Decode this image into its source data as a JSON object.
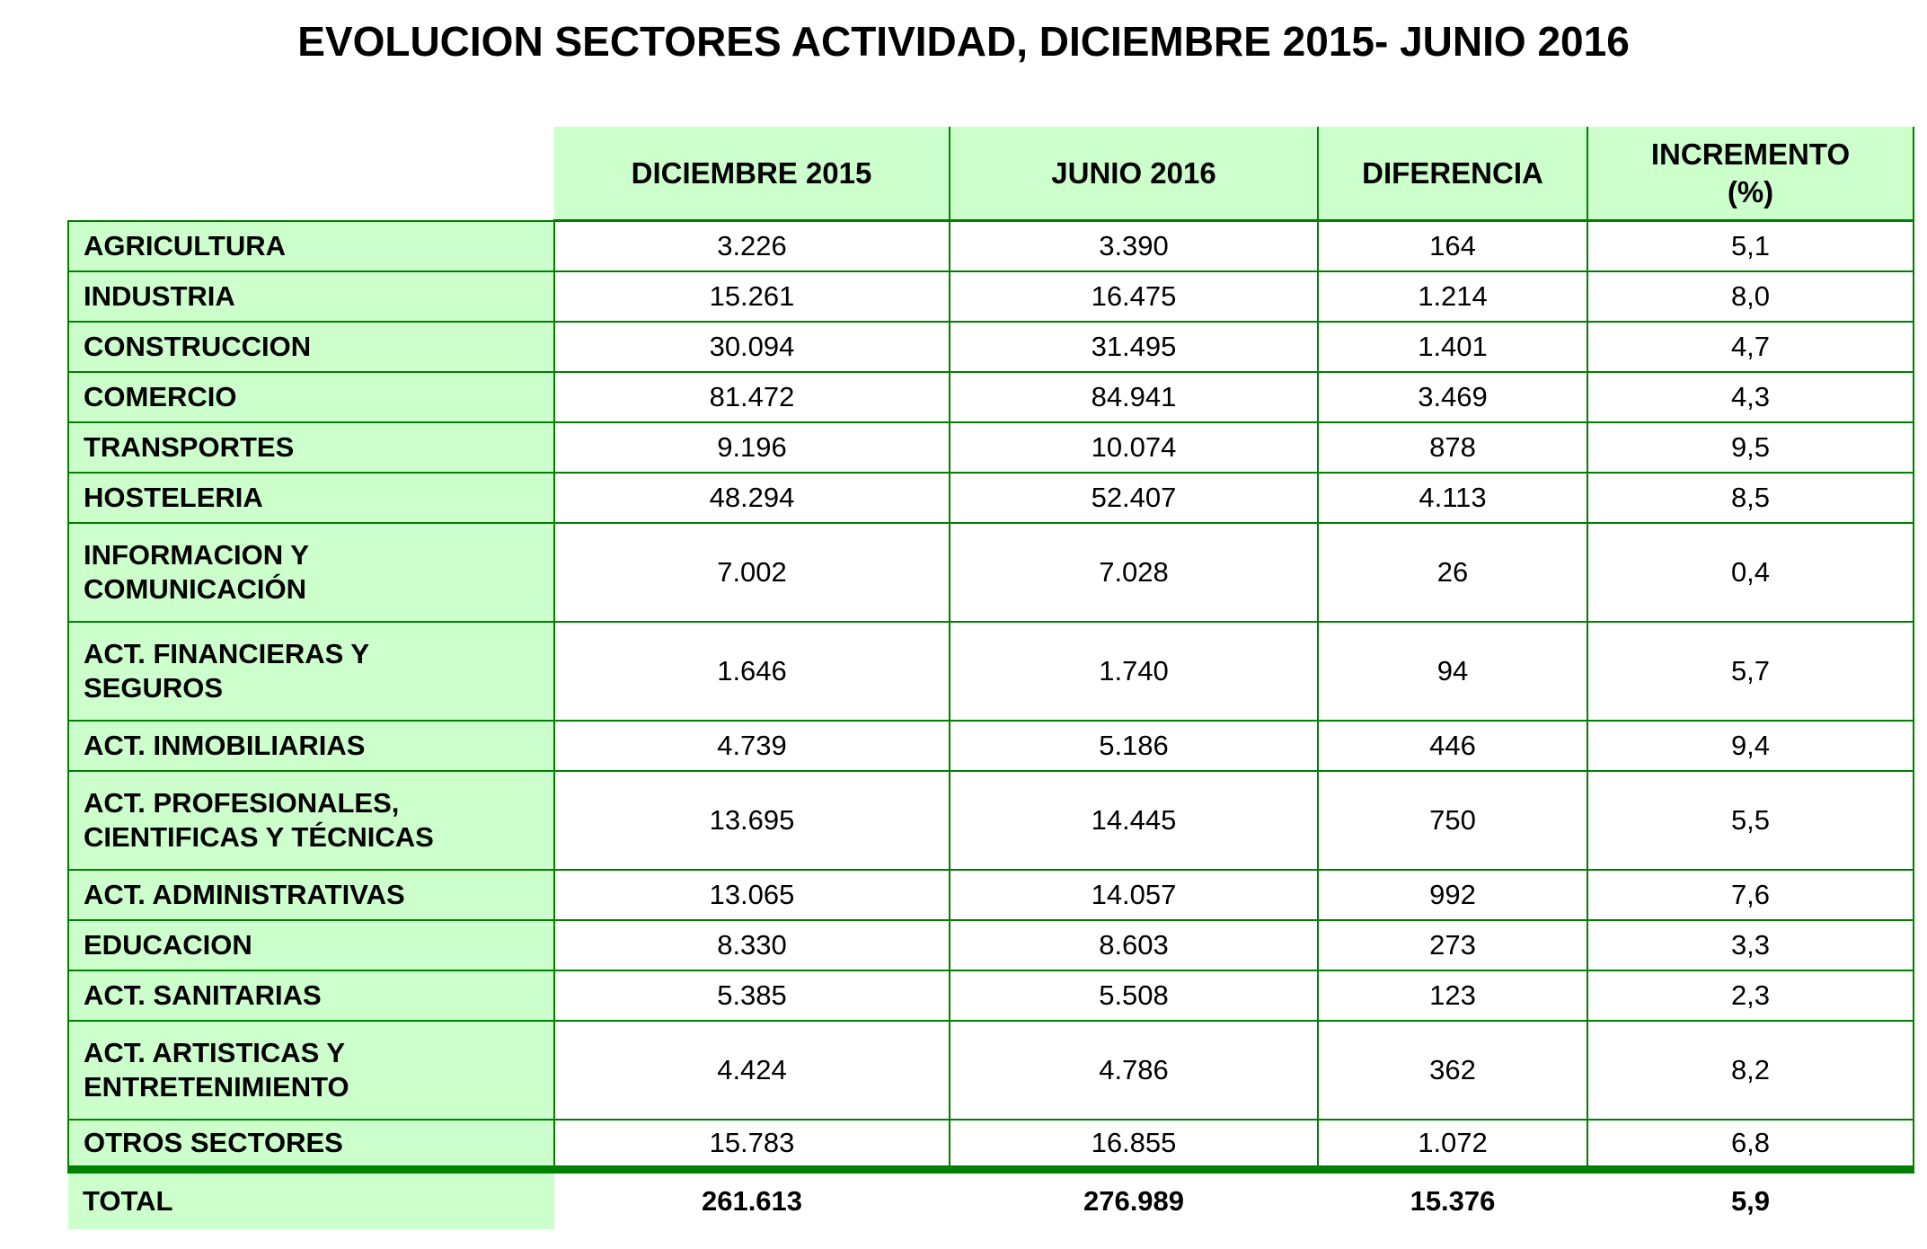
{
  "title": "EVOLUCION SECTORES ACTIVIDAD, DICIEMBRE 2015- JUNIO 2016",
  "colors": {
    "cell_background": "#ccffcc",
    "grid_border": "#008000",
    "text": "#000000",
    "page_background": "#ffffff"
  },
  "table": {
    "columns": [
      "DICIEMBRE 2015",
      "JUNIO 2016",
      "DIFERENCIA",
      "INCREMENTO\n(%)"
    ],
    "rows": [
      {
        "label": "AGRICULTURA",
        "values": [
          "3.226",
          "3.390",
          "164",
          "5,1"
        ]
      },
      {
        "label": "INDUSTRIA",
        "values": [
          "15.261",
          "16.475",
          "1.214",
          "8,0"
        ]
      },
      {
        "label": "CONSTRUCCION",
        "values": [
          "30.094",
          "31.495",
          "1.401",
          "4,7"
        ]
      },
      {
        "label": "COMERCIO",
        "values": [
          "81.472",
          "84.941",
          "3.469",
          "4,3"
        ]
      },
      {
        "label": "TRANSPORTES",
        "values": [
          "9.196",
          "10.074",
          "878",
          "9,5"
        ]
      },
      {
        "label": "HOSTELERIA",
        "values": [
          "48.294",
          "52.407",
          "4.113",
          "8,5"
        ]
      },
      {
        "label": "INFORMACION Y\nCOMUNICACIÓN",
        "values": [
          "7.002",
          "7.028",
          "26",
          "0,4"
        ]
      },
      {
        "label": "ACT. FINANCIERAS Y\nSEGUROS",
        "values": [
          "1.646",
          "1.740",
          "94",
          "5,7"
        ]
      },
      {
        "label": "ACT. INMOBILIARIAS",
        "values": [
          "4.739",
          "5.186",
          "446",
          "9,4"
        ]
      },
      {
        "label": "ACT. PROFESIONALES,\nCIENTIFICAS Y TÉCNICAS",
        "values": [
          "13.695",
          "14.445",
          "750",
          "5,5"
        ]
      },
      {
        "label": "ACT. ADMINISTRATIVAS",
        "values": [
          "13.065",
          "14.057",
          "992",
          "7,6"
        ]
      },
      {
        "label": "EDUCACION",
        "values": [
          "8.330",
          "8.603",
          "273",
          "3,3"
        ]
      },
      {
        "label": "ACT. SANITARIAS",
        "values": [
          "5.385",
          "5.508",
          "123",
          "2,3"
        ]
      },
      {
        "label": "ACT. ARTISTICAS Y\nENTRETENIMIENTO",
        "values": [
          "4.424",
          "4.786",
          "362",
          "8,2"
        ]
      },
      {
        "label": "OTROS SECTORES",
        "values": [
          "15.783",
          "16.855",
          "1.072",
          "6,8"
        ]
      }
    ],
    "total": {
      "label": "TOTAL",
      "values": [
        "261.613",
        "276.989",
        "15.376",
        "5,9"
      ]
    }
  },
  "chart_data": {
    "type": "table",
    "title": "EVOLUCION SECTORES ACTIVIDAD, DICIEMBRE 2015- JUNIO 2016",
    "categories": [
      "AGRICULTURA",
      "INDUSTRIA",
      "CONSTRUCCION",
      "COMERCIO",
      "TRANSPORTES",
      "HOSTELERIA",
      "INFORMACION Y COMUNICACIÓN",
      "ACT. FINANCIERAS Y SEGUROS",
      "ACT. INMOBILIARIAS",
      "ACT. PROFESIONALES, CIENTIFICAS Y TÉCNICAS",
      "ACT. ADMINISTRATIVAS",
      "EDUCACION",
      "ACT. SANITARIAS",
      "ACT. ARTISTICAS Y ENTRETENIMIENTO",
      "OTROS SECTORES"
    ],
    "series": [
      {
        "name": "DICIEMBRE 2015",
        "values": [
          3226,
          15261,
          30094,
          81472,
          9196,
          48294,
          7002,
          1646,
          4739,
          13695,
          13065,
          8330,
          5385,
          4424,
          15783
        ]
      },
      {
        "name": "JUNIO 2016",
        "values": [
          3390,
          16475,
          31495,
          84941,
          10074,
          52407,
          7028,
          1740,
          5186,
          14445,
          14057,
          8603,
          5508,
          4786,
          16855
        ]
      },
      {
        "name": "DIFERENCIA",
        "values": [
          164,
          1214,
          1401,
          3469,
          878,
          4113,
          26,
          94,
          446,
          750,
          992,
          273,
          123,
          362,
          1072
        ]
      },
      {
        "name": "INCREMENTO (%)",
        "values": [
          5.1,
          8.0,
          4.7,
          4.3,
          9.5,
          8.5,
          0.4,
          5.7,
          9.4,
          5.5,
          7.6,
          3.3,
          2.3,
          8.2,
          6.8
        ]
      }
    ],
    "total_row": {
      "label": "TOTAL",
      "DICIEMBRE 2015": 261613,
      "JUNIO 2016": 276989,
      "DIFERENCIA": 15376,
      "INCREMENTO (%)": 5.9
    }
  }
}
